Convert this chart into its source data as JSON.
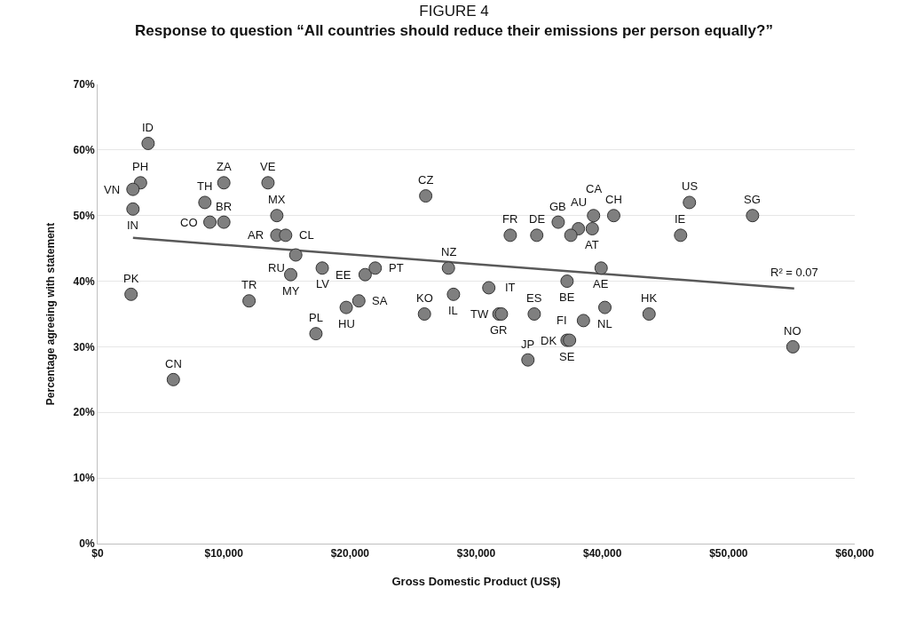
{
  "chart_data": {
    "type": "scatter",
    "title": "FIGURE 4",
    "subtitle": "Response to question “All countries should reduce their emissions per person equally?”",
    "xlabel": "Gross Domestic Product (US$)",
    "ylabel": "Percentage agreeing with statement",
    "xlim": [
      0,
      60000
    ],
    "xticks": [
      {
        "value": 0,
        "label": "$0"
      },
      {
        "value": 10000,
        "label": "$10,000"
      },
      {
        "value": 20000,
        "label": "$20,000"
      },
      {
        "value": 30000,
        "label": "$30,000"
      },
      {
        "value": 40000,
        "label": "$40,000"
      },
      {
        "value": 50000,
        "label": "$50,000"
      },
      {
        "value": 60000,
        "label": "$60,000"
      }
    ],
    "ylim": [
      0,
      70
    ],
    "yticks": [
      {
        "value": 0,
        "label": "0%"
      },
      {
        "value": 10,
        "label": "10%"
      },
      {
        "value": 20,
        "label": "20%"
      },
      {
        "value": 30,
        "label": "30%"
      },
      {
        "value": 40,
        "label": "40%"
      },
      {
        "value": 50,
        "label": "50%"
      },
      {
        "value": 60,
        "label": "60%"
      },
      {
        "value": 70,
        "label": "70%"
      }
    ],
    "grid": "y",
    "marker": "circle",
    "series": [
      {
        "color": "#7f7f7f",
        "x": [
          4000,
          3400,
          2800,
          2800,
          2650,
          6000,
          8500,
          8900,
          10000,
          10000,
          13500,
          14200,
          14200,
          14900,
          15700,
          15300,
          17800,
          12000,
          17300,
          19700,
          21200,
          22000,
          20700,
          26000,
          25900,
          27800,
          28200,
          31000,
          31800,
          32000,
          34600,
          34100,
          32700,
          34800,
          36500,
          37200,
          38500,
          37200,
          37400,
          38100,
          37500,
          39200,
          39300,
          40900,
          39900,
          40200,
          43700,
          46200,
          46900,
          51900,
          55100
        ],
        "values": [
          61,
          55,
          54,
          51,
          38,
          25,
          52,
          49,
          49,
          55,
          55,
          50,
          47,
          47,
          44,
          41,
          42,
          37,
          32,
          36,
          41,
          42,
          37,
          53,
          35,
          42,
          38,
          39,
          35,
          35,
          35,
          28,
          47,
          47,
          49,
          40,
          34,
          31,
          31,
          48,
          47,
          48,
          50,
          50,
          42,
          36,
          35,
          47,
          52,
          50,
          30
        ]
      },
      {
        "type": "line",
        "color": "#595959",
        "line_style": "solid",
        "marker": "none",
        "x": [
          2800,
          55200
        ],
        "values": [
          46.6,
          38.9
        ]
      }
    ],
    "annotations": [
      {
        "text": "ID",
        "x": 4000,
        "y": 61
      },
      {
        "text": "PH",
        "x": 3400,
        "y": 55
      },
      {
        "text": "VN",
        "x": 2800,
        "y": 54
      },
      {
        "text": "IN",
        "x": 2800,
        "y": 51
      },
      {
        "text": "PK",
        "x": 2650,
        "y": 38
      },
      {
        "text": "CN",
        "x": 6000,
        "y": 25
      },
      {
        "text": "TH",
        "x": 8500,
        "y": 52
      },
      {
        "text": "CO",
        "x": 8900,
        "y": 49
      },
      {
        "text": "BR",
        "x": 10000,
        "y": 49
      },
      {
        "text": "ZA",
        "x": 10000,
        "y": 55
      },
      {
        "text": "VE",
        "x": 13500,
        "y": 55
      },
      {
        "text": "MX",
        "x": 14200,
        "y": 50
      },
      {
        "text": "AR",
        "x": 14200,
        "y": 47
      },
      {
        "text": "CL",
        "x": 14900,
        "y": 47
      },
      {
        "text": "RU",
        "x": 15700,
        "y": 44
      },
      {
        "text": "MY",
        "x": 15300,
        "y": 41
      },
      {
        "text": "LV",
        "x": 17800,
        "y": 42
      },
      {
        "text": "TR",
        "x": 12000,
        "y": 37
      },
      {
        "text": "PL",
        "x": 17300,
        "y": 32
      },
      {
        "text": "HU",
        "x": 19700,
        "y": 36
      },
      {
        "text": "EE",
        "x": 21200,
        "y": 41
      },
      {
        "text": "PT",
        "x": 22000,
        "y": 42
      },
      {
        "text": "SA",
        "x": 20700,
        "y": 37
      },
      {
        "text": "CZ",
        "x": 26000,
        "y": 53
      },
      {
        "text": "KO",
        "x": 25900,
        "y": 35
      },
      {
        "text": "NZ",
        "x": 27800,
        "y": 42
      },
      {
        "text": "IL",
        "x": 28200,
        "y": 38
      },
      {
        "text": "IT",
        "x": 31000,
        "y": 39
      },
      {
        "text": "GR",
        "x": 31800,
        "y": 35
      },
      {
        "text": "TW",
        "x": 32000,
        "y": 35
      },
      {
        "text": "ES",
        "x": 34600,
        "y": 35
      },
      {
        "text": "JP",
        "x": 34100,
        "y": 28
      },
      {
        "text": "FR",
        "x": 32700,
        "y": 47
      },
      {
        "text": "DE",
        "x": 34800,
        "y": 47
      },
      {
        "text": "GB",
        "x": 36500,
        "y": 49
      },
      {
        "text": "BE",
        "x": 37200,
        "y": 40
      },
      {
        "text": "FI",
        "x": 38500,
        "y": 34
      },
      {
        "text": "SE",
        "x": 37200,
        "y": 31
      },
      {
        "text": "DK",
        "x": 37400,
        "y": 31
      },
      {
        "text": "AU",
        "x": 38100,
        "y": 48
      },
      {
        "text": "AT",
        "x": 39200,
        "y": 48
      },
      {
        "text": "CA",
        "x": 39300,
        "y": 50
      },
      {
        "text": "CH",
        "x": 40900,
        "y": 50
      },
      {
        "text": "AE",
        "x": 39900,
        "y": 42
      },
      {
        "text": "NL",
        "x": 40200,
        "y": 36
      },
      {
        "text": "HK",
        "x": 43700,
        "y": 35
      },
      {
        "text": "IE",
        "x": 46200,
        "y": 47
      },
      {
        "text": "US",
        "x": 46900,
        "y": 52
      },
      {
        "text": "SG",
        "x": 51900,
        "y": 50
      },
      {
        "text": "NO",
        "x": 55100,
        "y": 30
      },
      {
        "text": "R² = 0.07",
        "x": 55200,
        "y": 38.9
      }
    ]
  }
}
